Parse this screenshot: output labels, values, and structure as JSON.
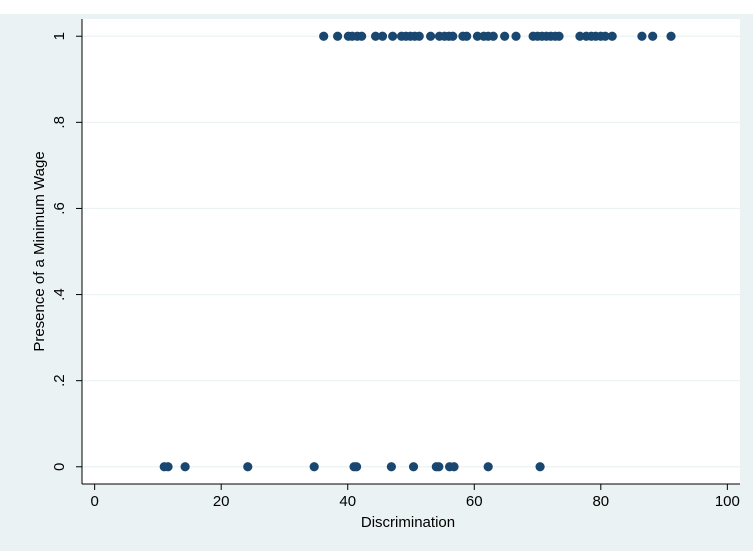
{
  "caption": "",
  "colors": {
    "background": "#eaf2f3",
    "plot_area": "#ffffff",
    "grid": "#eaf2f3",
    "marker": "#1a476f",
    "axis": "#000000"
  },
  "chart_data": {
    "type": "scatter",
    "title": "",
    "xlabel": "Discrimination",
    "ylabel": "Presence of a Minimum Wage",
    "xlim": [
      -2,
      102
    ],
    "ylim": [
      -0.04,
      1.04
    ],
    "xticks": [
      0,
      20,
      40,
      60,
      80,
      100
    ],
    "xtick_labels": [
      "0",
      "20",
      "40",
      "60",
      "80",
      "100"
    ],
    "yticks": [
      0,
      0.2,
      0.4,
      0.6,
      0.8,
      1
    ],
    "ytick_labels": [
      "0",
      ".2",
      ".4",
      ".6",
      ".8",
      "1"
    ],
    "grid": true,
    "legend": "none",
    "points": [
      {
        "x": 11.0,
        "y": 0
      },
      {
        "x": 11.6,
        "y": 0
      },
      {
        "x": 14.3,
        "y": 0
      },
      {
        "x": 24.2,
        "y": 0
      },
      {
        "x": 34.7,
        "y": 0
      },
      {
        "x": 41.0,
        "y": 0
      },
      {
        "x": 41.4,
        "y": 0
      },
      {
        "x": 46.9,
        "y": 0
      },
      {
        "x": 50.4,
        "y": 0
      },
      {
        "x": 54.0,
        "y": 0
      },
      {
        "x": 54.4,
        "y": 0
      },
      {
        "x": 56.1,
        "y": 0
      },
      {
        "x": 56.8,
        "y": 0
      },
      {
        "x": 62.2,
        "y": 0
      },
      {
        "x": 70.4,
        "y": 0
      },
      {
        "x": 36.2,
        "y": 1
      },
      {
        "x": 38.4,
        "y": 1
      },
      {
        "x": 40.1,
        "y": 1
      },
      {
        "x": 40.7,
        "y": 1
      },
      {
        "x": 41.5,
        "y": 1
      },
      {
        "x": 42.2,
        "y": 1
      },
      {
        "x": 44.4,
        "y": 1
      },
      {
        "x": 45.5,
        "y": 1
      },
      {
        "x": 47.1,
        "y": 1
      },
      {
        "x": 48.5,
        "y": 1
      },
      {
        "x": 49.2,
        "y": 1
      },
      {
        "x": 49.9,
        "y": 1
      },
      {
        "x": 50.6,
        "y": 1
      },
      {
        "x": 51.3,
        "y": 1
      },
      {
        "x": 53.1,
        "y": 1
      },
      {
        "x": 54.5,
        "y": 1
      },
      {
        "x": 55.3,
        "y": 1
      },
      {
        "x": 56.0,
        "y": 1
      },
      {
        "x": 56.6,
        "y": 1
      },
      {
        "x": 58.2,
        "y": 1
      },
      {
        "x": 58.8,
        "y": 1
      },
      {
        "x": 60.5,
        "y": 1
      },
      {
        "x": 61.5,
        "y": 1
      },
      {
        "x": 62.2,
        "y": 1
      },
      {
        "x": 63.0,
        "y": 1
      },
      {
        "x": 64.8,
        "y": 1
      },
      {
        "x": 66.6,
        "y": 1
      },
      {
        "x": 69.3,
        "y": 1
      },
      {
        "x": 70.0,
        "y": 1
      },
      {
        "x": 70.7,
        "y": 1
      },
      {
        "x": 71.4,
        "y": 1
      },
      {
        "x": 72.1,
        "y": 1
      },
      {
        "x": 72.8,
        "y": 1
      },
      {
        "x": 73.4,
        "y": 1
      },
      {
        "x": 76.7,
        "y": 1
      },
      {
        "x": 77.7,
        "y": 1
      },
      {
        "x": 78.5,
        "y": 1
      },
      {
        "x": 79.2,
        "y": 1
      },
      {
        "x": 80.0,
        "y": 1
      },
      {
        "x": 80.7,
        "y": 1
      },
      {
        "x": 81.8,
        "y": 1
      },
      {
        "x": 86.5,
        "y": 1
      },
      {
        "x": 88.2,
        "y": 1
      },
      {
        "x": 91.1,
        "y": 1
      }
    ]
  }
}
